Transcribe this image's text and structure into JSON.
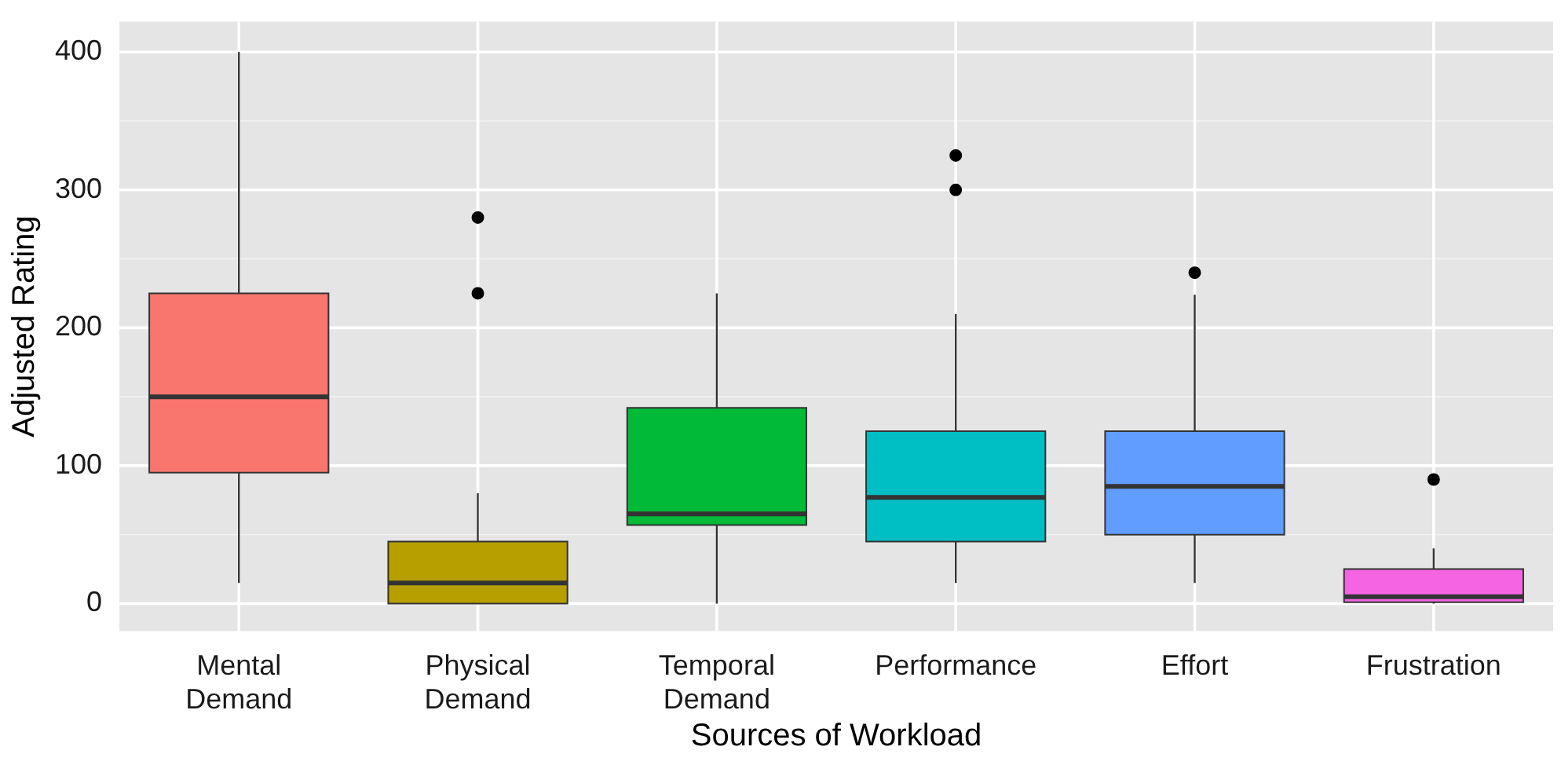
{
  "chart_data": {
    "type": "box",
    "xlabel": "Sources of Workload",
    "ylabel": "Adjusted Rating",
    "categories": [
      "Mental Demand",
      "Physical Demand",
      "Temporal Demand",
      "Performance",
      "Effort",
      "Frustration"
    ],
    "colors": [
      "#f8766d",
      "#b79f00",
      "#00ba38",
      "#00bfc4",
      "#619cff",
      "#f564e3"
    ],
    "boxes": [
      {
        "low": 15,
        "q1": 95,
        "median": 150,
        "q3": 225,
        "high": 400
      },
      {
        "low": 0,
        "q1": 0,
        "median": 15,
        "q3": 45,
        "high": 80,
        "outliers": [
          280,
          225
        ]
      },
      {
        "low": 0,
        "q1": 57,
        "median": 65,
        "q3": 142,
        "high": 225
      },
      {
        "low": 15,
        "q1": 45,
        "median": 77,
        "q3": 125,
        "high": 210,
        "outliers": [
          325,
          300
        ]
      },
      {
        "low": 15,
        "q1": 50,
        "median": 85,
        "q3": 125,
        "high": 224,
        "outliers": [
          240
        ]
      },
      {
        "low": 0,
        "q1": 1,
        "median": 5,
        "q3": 25,
        "high": 40,
        "outliers": [
          90
        ]
      }
    ],
    "ylim": [
      -20,
      422
    ],
    "yticks": [
      0,
      100,
      200,
      300,
      400
    ],
    "grid": true
  }
}
